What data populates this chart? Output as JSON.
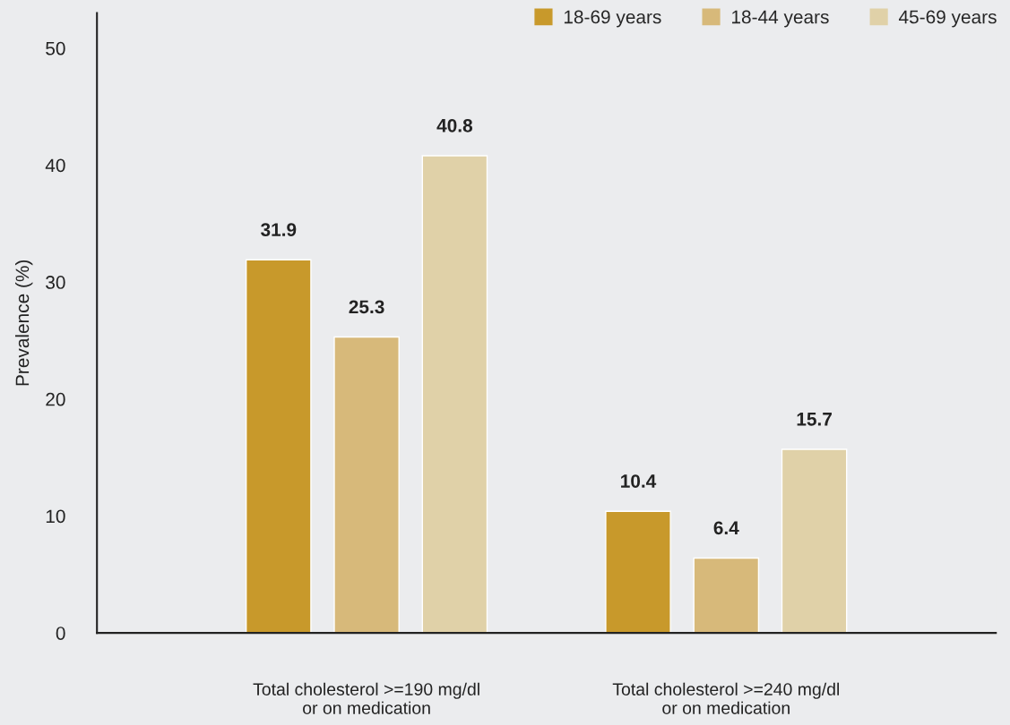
{
  "chart_data": {
    "type": "bar",
    "ylabel": "Prevalence (%)",
    "categories": [
      "Total cholesterol >=190 mg/dl\nor on medication",
      "Total cholesterol >=240 mg/dl\nor on medication"
    ],
    "series": [
      {
        "name": "18-69 years",
        "color": "#c8992b",
        "values": [
          31.9,
          10.4
        ]
      },
      {
        "name": "18-44 years",
        "color": "#d7b97a",
        "values": [
          25.3,
          6.4
        ]
      },
      {
        "name": "45-69 years",
        "color": "#e0d1a8",
        "values": [
          40.8,
          15.7
        ]
      }
    ],
    "ylim": [
      0,
      53
    ],
    "yticks": [
      0,
      10,
      20,
      30,
      40,
      50
    ],
    "data_labels": true,
    "grid": false,
    "legend": "top right"
  }
}
